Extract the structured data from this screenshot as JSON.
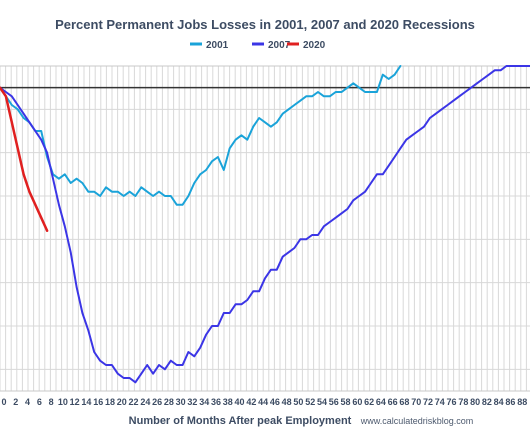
{
  "chart_data": {
    "type": "line",
    "title": "Percent Permanent Jobs Losses in 2001, 2007 and 2020 Recessions",
    "xlabel": "Number of Months After peak Employment",
    "source": "www.calculatedriskblog.com",
    "xlim": [
      0,
      90
    ],
    "ylim": [
      -70,
      5
    ],
    "grid": true,
    "legend_position": "top-center",
    "x_ticks": [
      0,
      2,
      4,
      6,
      8,
      10,
      12,
      14,
      16,
      18,
      20,
      22,
      24,
      26,
      28,
      30,
      32,
      34,
      36,
      38,
      40,
      42,
      44,
      46,
      48,
      50,
      52,
      54,
      56,
      58,
      60,
      62,
      64,
      66,
      68,
      70,
      72,
      74,
      76,
      78,
      80,
      82,
      84,
      86,
      88
    ],
    "x_tick_labels": [
      "0",
      "2",
      "4",
      "6",
      "8",
      "10",
      "12",
      "14",
      "16",
      "18",
      "20",
      "22",
      "24",
      "26",
      "28",
      "30",
      "32",
      "34",
      "36",
      "38",
      "40",
      "42",
      "44",
      "46",
      "48",
      "50",
      "52",
      "54",
      "56",
      "58",
      "60",
      "62",
      "64",
      "66",
      "68",
      "70",
      "72",
      "74",
      "76",
      "78",
      "80",
      "82",
      "84",
      "86",
      "88"
    ],
    "reference_line": 0,
    "series": [
      {
        "name": "2001",
        "color": "#1aa3d9",
        "x": [
          0,
          1,
          2,
          3,
          4,
          5,
          6,
          7,
          8,
          9,
          10,
          11,
          12,
          13,
          14,
          15,
          16,
          17,
          18,
          19,
          20,
          21,
          22,
          23,
          24,
          25,
          26,
          27,
          28,
          29,
          30,
          31,
          32,
          33,
          34,
          35,
          36,
          37,
          38,
          39,
          40,
          41,
          42,
          43,
          44,
          45,
          46,
          47,
          48,
          49,
          50,
          51,
          52,
          53,
          54,
          55,
          56,
          57,
          58,
          59,
          60,
          61,
          62,
          63,
          64,
          65,
          66,
          67,
          68
        ],
        "y": [
          0,
          -2,
          -4,
          -5,
          -7,
          -8,
          -10,
          -10,
          -16,
          -20,
          -21,
          -20,
          -22,
          -21,
          -22,
          -24,
          -24,
          -25,
          -23,
          -24,
          -24,
          -25,
          -24,
          -25,
          -23,
          -24,
          -25,
          -24,
          -25,
          -25,
          -27,
          -27,
          -25,
          -22,
          -20,
          -19,
          -17,
          -16,
          -19,
          -14,
          -12,
          -11,
          -12,
          -9,
          -7,
          -8,
          -9,
          -8,
          -6,
          -5,
          -4,
          -3,
          -2,
          -2,
          -1,
          -2,
          -2,
          -1,
          -1,
          0,
          1,
          0,
          -1,
          -1,
          -1,
          3,
          2,
          3,
          5
        ],
        "stroke_width": 2
      },
      {
        "name": "2007",
        "color": "#3b35e6",
        "x": [
          0,
          1,
          2,
          3,
          4,
          5,
          6,
          7,
          8,
          9,
          10,
          11,
          12,
          13,
          14,
          15,
          16,
          17,
          18,
          19,
          20,
          21,
          22,
          23,
          24,
          25,
          26,
          27,
          28,
          29,
          30,
          31,
          32,
          33,
          34,
          35,
          36,
          37,
          38,
          39,
          40,
          41,
          42,
          43,
          44,
          45,
          46,
          47,
          48,
          49,
          50,
          51,
          52,
          53,
          54,
          55,
          56,
          57,
          58,
          59,
          60,
          61,
          62,
          63,
          64,
          65,
          66,
          67,
          68,
          69,
          70,
          71,
          72,
          73,
          74,
          75,
          76,
          77,
          78,
          79,
          80,
          81,
          82,
          83,
          84,
          85,
          86,
          87,
          88,
          89,
          90
        ],
        "y": [
          0,
          -1,
          -2,
          -4,
          -6,
          -8,
          -10,
          -12,
          -15,
          -21,
          -27,
          -32,
          -38,
          -46,
          -52,
          -56,
          -61,
          -63,
          -64,
          -64,
          -66,
          -67,
          -67,
          -68,
          -66,
          -64,
          -66,
          -64,
          -65,
          -63,
          -64,
          -64,
          -61,
          -62,
          -60,
          -57,
          -55,
          -55,
          -52,
          -52,
          -50,
          -50,
          -49,
          -47,
          -47,
          -44,
          -42,
          -42,
          -39,
          -38,
          -37,
          -35,
          -35,
          -34,
          -34,
          -32,
          -31,
          -30,
          -29,
          -28,
          -26,
          -25,
          -24,
          -22,
          -20,
          -20,
          -18,
          -16,
          -14,
          -12,
          -11,
          -10,
          -9,
          -7,
          -6,
          -5,
          -4,
          -3,
          -2,
          -1,
          0,
          1,
          2,
          3,
          4,
          4,
          5,
          5,
          5,
          5,
          5
        ],
        "stroke_width": 2
      },
      {
        "name": "2020",
        "color": "#e02020",
        "x": [
          0,
          1,
          2,
          3,
          4,
          5,
          6,
          7,
          8
        ],
        "y": [
          0,
          -2,
          -8,
          -14,
          -20,
          -24,
          -27,
          -30,
          -33
        ],
        "stroke_width": 2.5
      }
    ]
  }
}
